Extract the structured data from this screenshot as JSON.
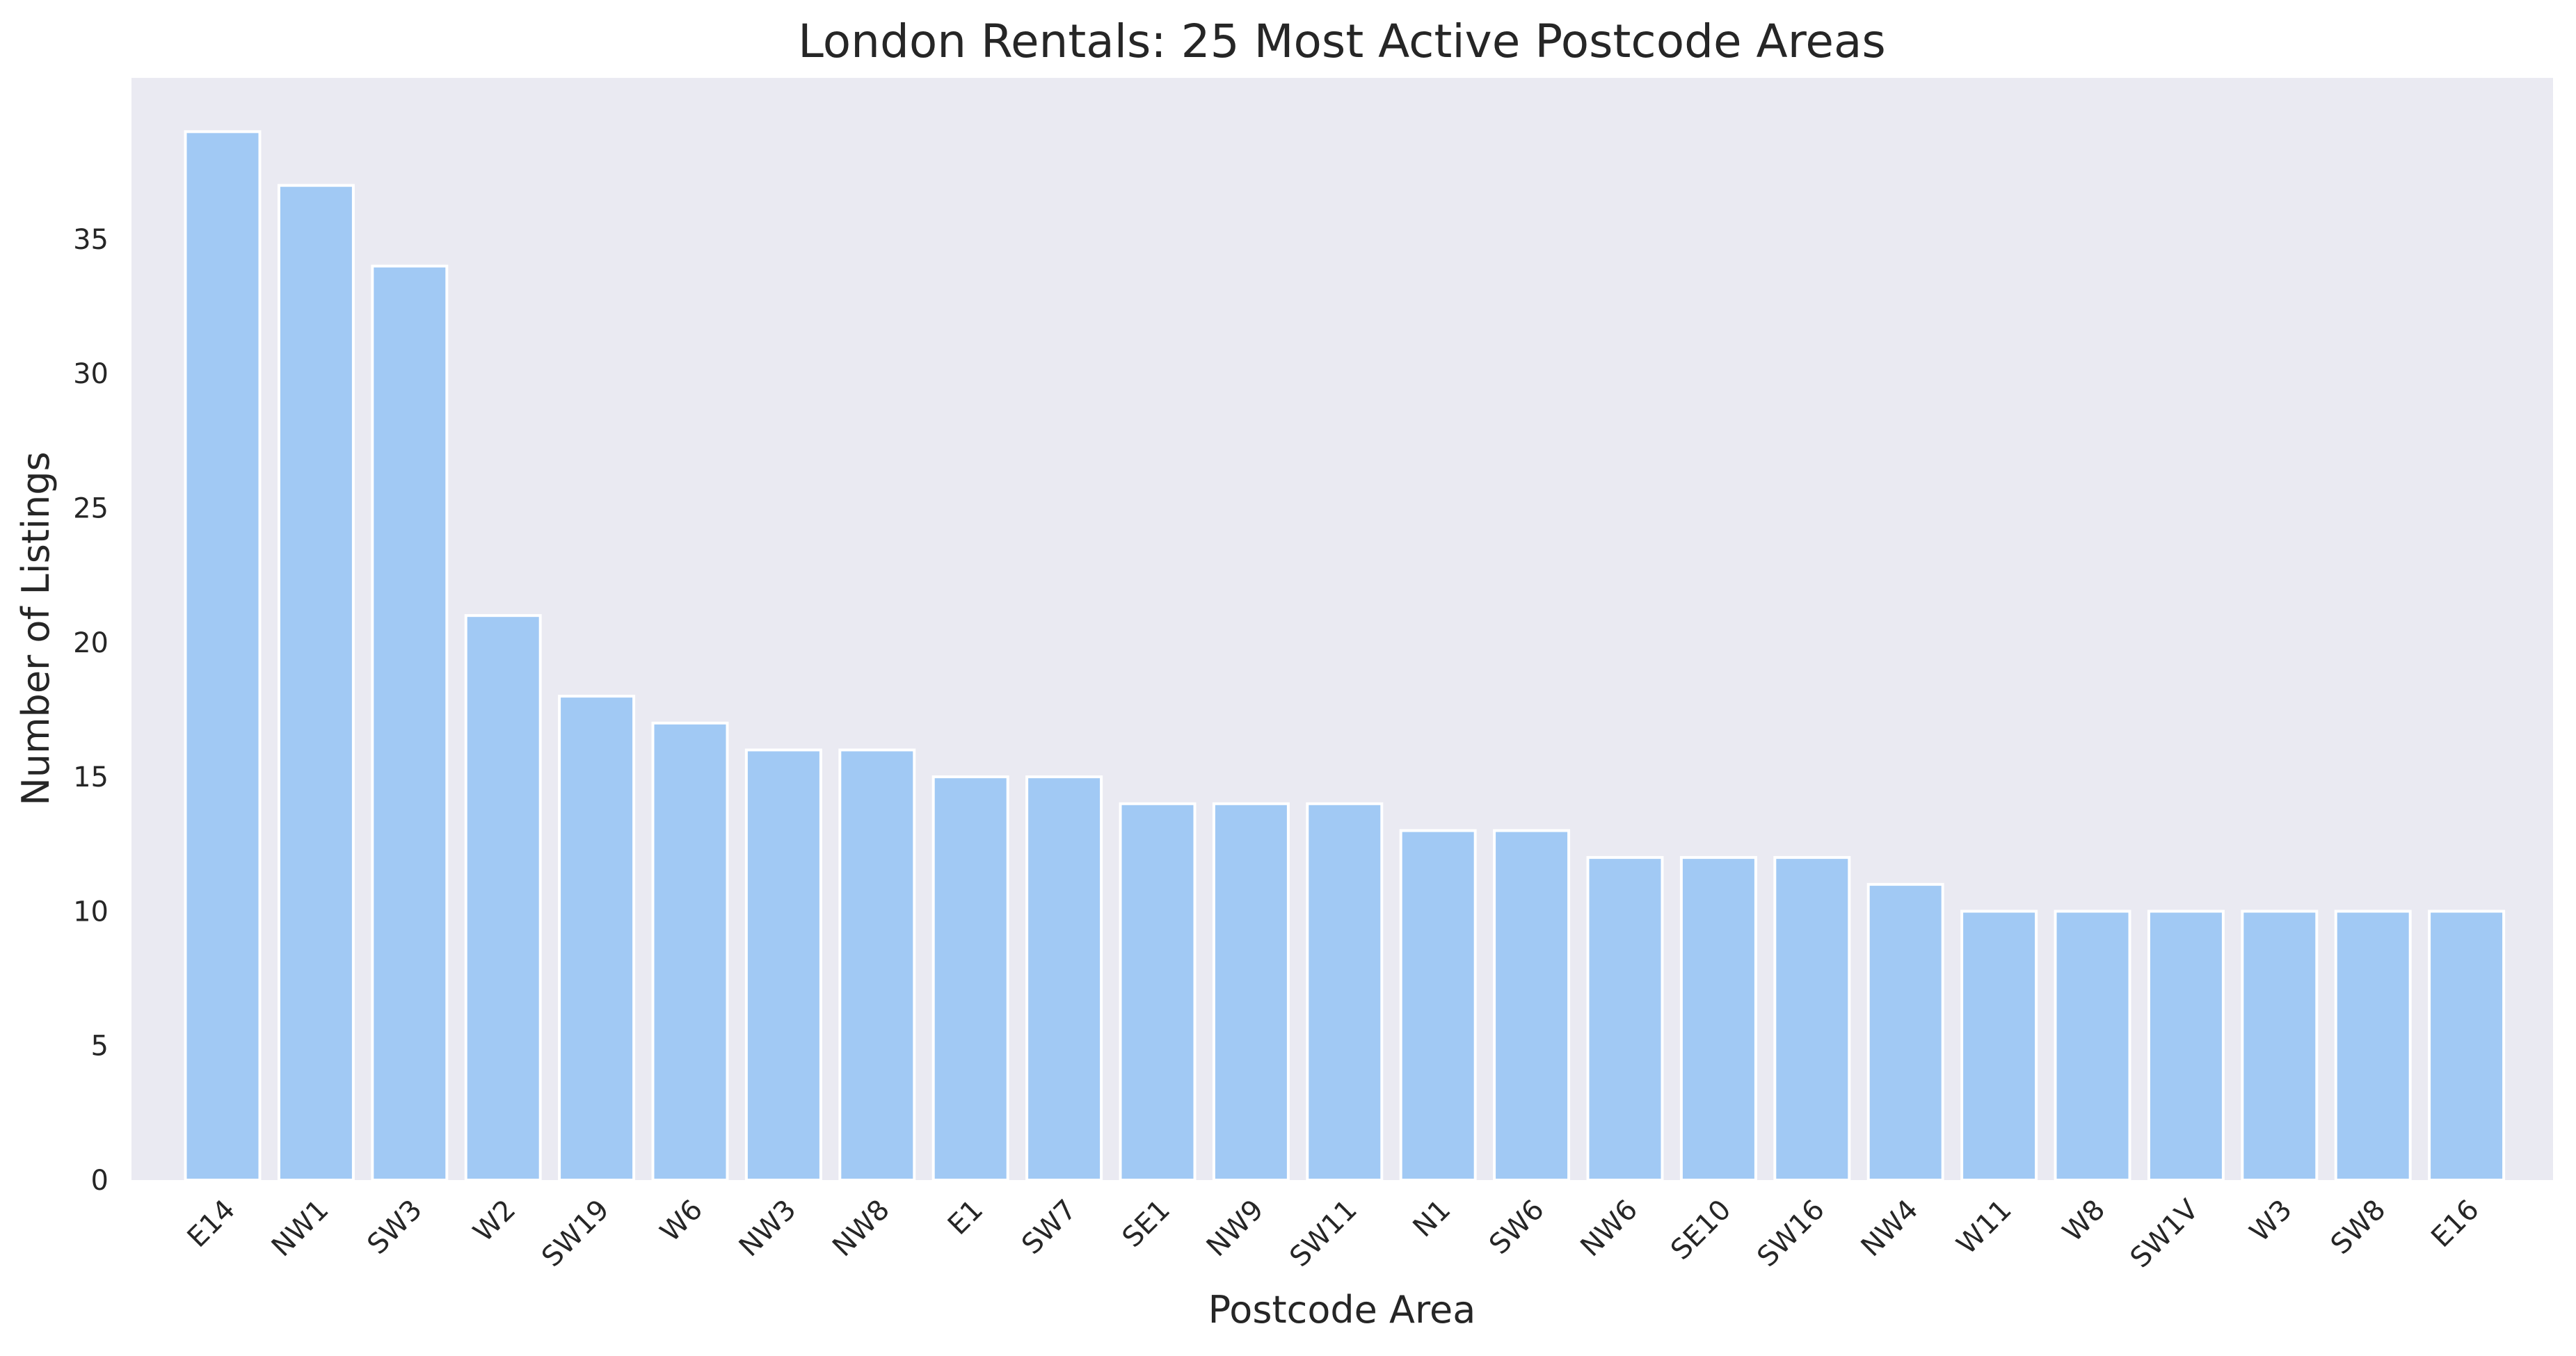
{
  "chart_data": {
    "type": "bar",
    "title": "London Rentals: 25 Most Active Postcode Areas",
    "xlabel": "Postcode Area",
    "ylabel": "Number of Listings",
    "categories": [
      "E14",
      "NW1",
      "SW3",
      "W2",
      "SW19",
      "W6",
      "NW3",
      "NW8",
      "E1",
      "SW7",
      "SE1",
      "NW9",
      "SW11",
      "N1",
      "SW6",
      "NW6",
      "SE10",
      "SW16",
      "NW4",
      "W11",
      "W8",
      "SW1V",
      "W3",
      "SW8",
      "E16"
    ],
    "values": [
      39,
      37,
      34,
      21,
      18,
      17,
      16,
      16,
      15,
      15,
      14,
      14,
      14,
      13,
      13,
      12,
      12,
      12,
      11,
      10,
      10,
      10,
      10,
      10,
      10
    ],
    "ylim": [
      0,
      41
    ],
    "yticks": [
      0,
      5,
      10,
      15,
      20,
      25,
      30,
      35
    ],
    "grid": false,
    "legend": "none",
    "colors": {
      "bar": "#a1c9f4",
      "bar_edge": "#ffffff",
      "plot_bg": "#eaeaf2",
      "text": "#262626"
    }
  }
}
